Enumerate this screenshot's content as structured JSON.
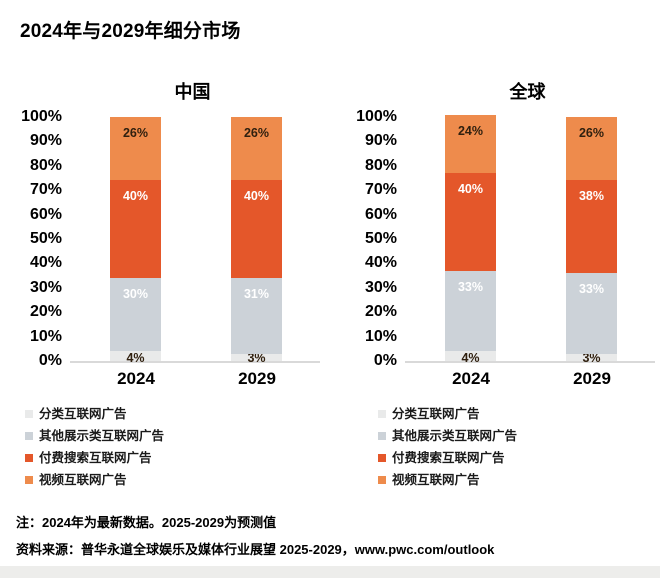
{
  "page": {
    "title": "2024年与2029年细分市场",
    "note_line1": "注：2024年为最新数据。2025-2029为预测值",
    "note_line2": "资料来源：普华永道全球娱乐及媒体行业展望 2025-2029，www.pwc.com/outlook"
  },
  "colors": {
    "classified": "#E9EAEA",
    "other_display": "#CCD2D8",
    "paid_search": "#E4572A",
    "video": "#EE8B4C",
    "axis_line": "#D9D9D9",
    "label_dark": "#30200F",
    "label_light": "#FFFFFF"
  },
  "chart_data": [
    {
      "type": "bar",
      "stacked": true,
      "title": "中国",
      "categories": [
        "2024",
        "2029"
      ],
      "y_ticks": [
        "100%",
        "90%",
        "80%",
        "70%",
        "60%",
        "50%",
        "40%",
        "30%",
        "20%",
        "10%",
        "0%"
      ],
      "ylim": [
        0,
        100
      ],
      "grid": false,
      "legend_position": "bottom",
      "series": [
        {
          "name": "分类互联网广告",
          "values": [
            4,
            3
          ],
          "color_key": "classified",
          "label_style": "dark"
        },
        {
          "name": "其他展示类互联网广告",
          "values": [
            30,
            31
          ],
          "color_key": "other_display",
          "label_style": "light"
        },
        {
          "name": "付费搜索互联网广告",
          "values": [
            40,
            40
          ],
          "color_key": "paid_search",
          "label_style": "light"
        },
        {
          "name": "视频互联网广告",
          "values": [
            26,
            26
          ],
          "color_key": "video",
          "label_style": "dark"
        }
      ]
    },
    {
      "type": "bar",
      "stacked": true,
      "title": "全球",
      "categories": [
        "2024",
        "2029"
      ],
      "y_ticks": [
        "100%",
        "90%",
        "80%",
        "70%",
        "60%",
        "50%",
        "40%",
        "30%",
        "20%",
        "10%",
        "0%"
      ],
      "ylim": [
        0,
        100
      ],
      "grid": false,
      "legend_position": "bottom",
      "series": [
        {
          "name": "分类互联网广告",
          "values": [
            4,
            3
          ],
          "color_key": "classified",
          "label_style": "dark"
        },
        {
          "name": "其他展示类互联网广告",
          "values": [
            33,
            33
          ],
          "color_key": "other_display",
          "label_style": "light"
        },
        {
          "name": "付费搜索互联网广告",
          "values": [
            40,
            38
          ],
          "color_key": "paid_search",
          "label_style": "light"
        },
        {
          "name": "视频互联网广告",
          "values": [
            24,
            26
          ],
          "color_key": "video",
          "label_style": "dark"
        }
      ]
    }
  ]
}
